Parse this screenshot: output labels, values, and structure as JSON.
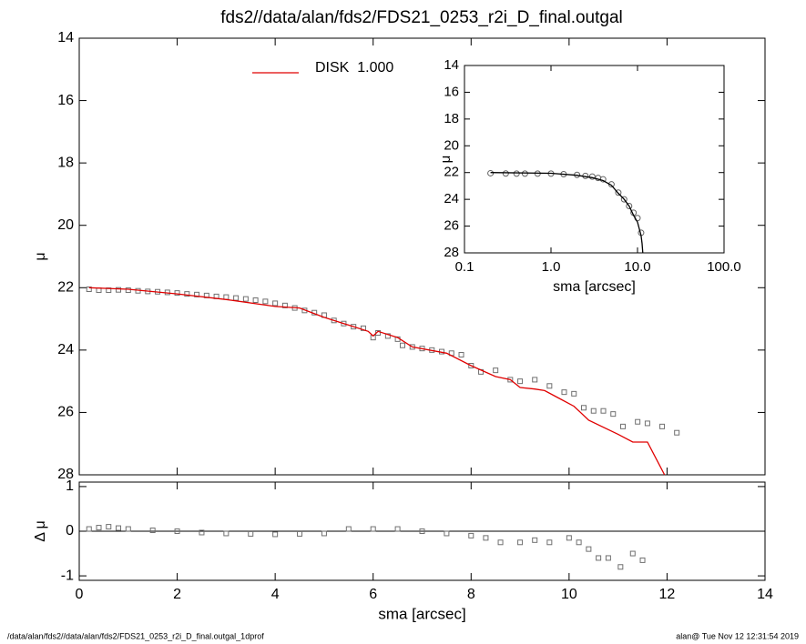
{
  "title": "fds2//data/alan/fds2/FDS21_0253_r2i_D_final.outgal",
  "footer": {
    "left": "/data/alan/fds2//data/alan/fds2/FDS21_0253_r2i_D_final.outgal_1dprof",
    "right": "alan@  Tue Nov 12 12:31:54 2019"
  },
  "chart_data": [
    {
      "type": "line",
      "ylabel": "μ",
      "xlim": [
        0,
        14
      ],
      "xticks": [
        0,
        2,
        4,
        6,
        8,
        10,
        12,
        14
      ],
      "ylim": [
        14,
        28
      ],
      "yticks": [
        14,
        16,
        18,
        20,
        22,
        24,
        26,
        28
      ],
      "y_inverted": true,
      "series": [
        {
          "marker": "square",
          "color": "#707070",
          "x": [
            0.2,
            0.4,
            0.6,
            0.8,
            1.0,
            1.2,
            1.4,
            1.6,
            1.8,
            2.0,
            2.2,
            2.4,
            2.6,
            2.8,
            3.0,
            3.2,
            3.4,
            3.6,
            3.8,
            4.0,
            4.2,
            4.4,
            4.6,
            4.8,
            5.0,
            5.2,
            5.4,
            5.6,
            5.8,
            6.0,
            6.1,
            6.3,
            6.5,
            6.6,
            6.8,
            7.0,
            7.2,
            7.4,
            7.6,
            7.8,
            8.0,
            8.2,
            8.5,
            8.8,
            9.0,
            9.3,
            9.6,
            9.9,
            10.1,
            10.3,
            10.5,
            10.7,
            10.9,
            11.1,
            11.4,
            11.6,
            11.9,
            12.2
          ],
          "values": [
            22.05,
            22.08,
            22.08,
            22.07,
            22.08,
            22.1,
            22.12,
            22.13,
            22.15,
            22.17,
            22.2,
            22.22,
            22.25,
            22.28,
            22.3,
            22.33,
            22.36,
            22.4,
            22.44,
            22.5,
            22.57,
            22.65,
            22.73,
            22.8,
            22.88,
            23.05,
            23.15,
            23.25,
            23.3,
            23.6,
            23.45,
            23.55,
            23.65,
            23.85,
            23.9,
            23.95,
            24.0,
            24.05,
            24.1,
            24.15,
            24.5,
            24.7,
            24.65,
            24.95,
            25.0,
            24.95,
            25.15,
            25.35,
            25.4,
            25.85,
            25.95,
            25.95,
            26.05,
            26.45,
            26.3,
            26.35,
            26.45,
            26.65
          ]
        },
        {
          "name": "DISK  1.000",
          "color": "#e00000",
          "x": [
            0.2,
            1.0,
            2.0,
            3.0,
            4.0,
            4.5,
            5.0,
            5.5,
            5.9,
            6.0,
            6.1,
            6.5,
            6.8,
            7.5,
            8.0,
            8.5,
            8.8,
            9.0,
            9.3,
            9.5,
            9.8,
            10.1,
            10.4,
            11.0,
            11.3,
            11.6,
            11.95
          ],
          "values": [
            22.0,
            22.05,
            22.2,
            22.38,
            22.6,
            22.65,
            22.95,
            23.2,
            23.4,
            23.55,
            23.4,
            23.6,
            23.9,
            24.1,
            24.5,
            24.85,
            24.95,
            25.2,
            25.25,
            25.3,
            25.55,
            25.8,
            26.25,
            26.7,
            26.95,
            26.95,
            28.0
          ]
        }
      ]
    },
    {
      "type": "scatter",
      "ylabel": "Δ μ",
      "xlabel": "sma [arcsec]",
      "xlim": [
        0,
        14
      ],
      "xticks": [
        0,
        2,
        4,
        6,
        8,
        10,
        12,
        14
      ],
      "ylim": [
        -1.1,
        1.1
      ],
      "yticks": [
        -1,
        0,
        1
      ],
      "series": [
        {
          "marker": "square",
          "color": "#707070",
          "x": [
            0.2,
            0.4,
            0.6,
            0.8,
            1.0,
            1.5,
            2.0,
            2.5,
            3.0,
            3.5,
            4.0,
            4.5,
            5.0,
            5.5,
            6.0,
            6.5,
            7.0,
            7.5,
            8.0,
            8.3,
            8.6,
            9.0,
            9.3,
            9.6,
            10.0,
            10.2,
            10.4,
            10.6,
            10.8,
            11.05,
            11.3,
            11.5
          ],
          "values": [
            0.05,
            0.08,
            0.1,
            0.07,
            0.05,
            0.02,
            0.0,
            -0.03,
            -0.05,
            -0.06,
            -0.07,
            -0.06,
            -0.05,
            0.05,
            0.05,
            0.05,
            0.0,
            -0.05,
            -0.1,
            -0.15,
            -0.25,
            -0.25,
            -0.2,
            -0.25,
            -0.15,
            -0.25,
            -0.4,
            -0.6,
            -0.6,
            -0.8,
            -0.5,
            -0.65
          ]
        }
      ]
    },
    {
      "type": "line",
      "ylabel": "μ",
      "xlabel": "sma [arcsec]",
      "xlog": true,
      "xlim": [
        0.1,
        100
      ],
      "xticks": [
        0.1,
        {
          "value": 1,
          "label": "1.0"
        },
        {
          "value": 10,
          "label": "10.0"
        },
        {
          "value": 100,
          "label": "100.0"
        }
      ],
      "ylim": [
        14,
        28
      ],
      "yticks": [
        14,
        16,
        18,
        20,
        22,
        24,
        26,
        28
      ],
      "y_inverted": true,
      "series": [
        {
          "marker": "circle",
          "color": "#606060",
          "x": [
            0.2,
            0.3,
            0.4,
            0.5,
            0.7,
            1.0,
            1.4,
            2.0,
            2.5,
            3.0,
            3.5,
            4.0,
            5.0,
            6.0,
            7.0,
            8.0,
            9.0,
            10.0,
            11.0
          ],
          "values": [
            22.05,
            22.07,
            22.08,
            22.08,
            22.08,
            22.08,
            22.12,
            22.17,
            22.25,
            22.3,
            22.4,
            22.5,
            22.88,
            23.5,
            24.0,
            24.5,
            25.0,
            25.4,
            26.5
          ]
        },
        {
          "color": "#000000",
          "x": [
            0.2,
            1.0,
            2.0,
            3.0,
            4.0,
            5.0,
            6.0,
            7.0,
            8.0,
            9.0,
            10.0,
            11.0,
            11.3,
            11.5
          ],
          "values": [
            22.0,
            22.05,
            22.2,
            22.38,
            22.6,
            22.95,
            23.55,
            24.0,
            24.5,
            25.2,
            25.7,
            26.7,
            27.3,
            28.0
          ]
        }
      ]
    }
  ]
}
